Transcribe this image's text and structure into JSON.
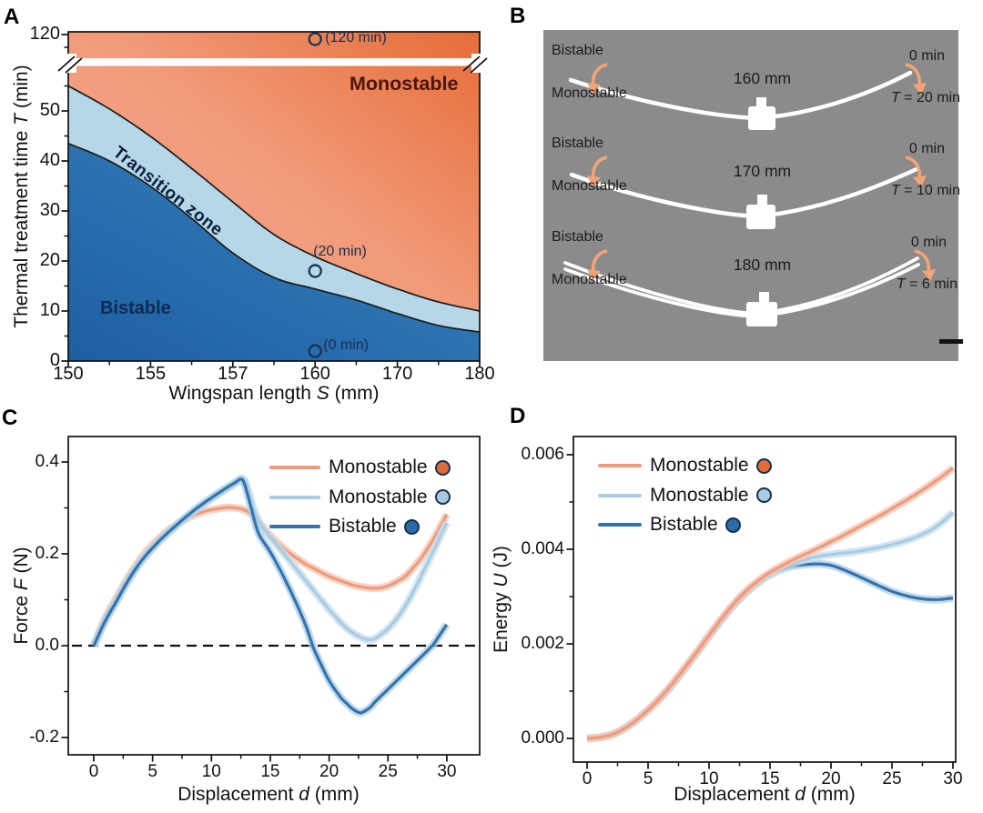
{
  "panels": {
    "a": {
      "letter": "A",
      "ylabel": {
        "pre": "Thermal treatment time ",
        "var": "T",
        "post": " (min)"
      },
      "xlabel": {
        "pre": "Wingspan length ",
        "var": "S",
        "post": " (mm)"
      },
      "yticks": [
        "120",
        "50",
        "40",
        "30",
        "20",
        "10",
        "0"
      ],
      "xticks": [
        "150",
        "155",
        "157",
        "160",
        "170",
        "180"
      ],
      "region_labels": {
        "monostable": "Monostable",
        "transition": "Transition zone",
        "bistable": "Bistable"
      }
    },
    "b": {
      "letter": "B",
      "rows": [
        {
          "state_top": "Bistable",
          "state_bottom": "Monostable",
          "length": "160 mm",
          "time_zero": "0 min",
          "t_var": "T",
          "t_rest": " = 20 min"
        },
        {
          "state_top": "Bistable",
          "state_bottom": "Monostable",
          "length": "170 mm",
          "time_zero": "0 min",
          "t_var": "T",
          "t_rest": " = 10 min"
        },
        {
          "state_top": "Bistable",
          "state_bottom": "Monostable",
          "length": "180 mm",
          "time_zero": "0 min",
          "t_var": "T",
          "t_rest": " = 6 min"
        }
      ]
    },
    "c": {
      "letter": "C",
      "ylabel": {
        "pre": "Force ",
        "var": "F",
        "post": " (N)"
      },
      "xlabel": {
        "pre": "Displacement ",
        "var": "d",
        "post": " (mm)"
      },
      "yticks": [
        "0.4",
        "0.2",
        "0.0",
        "-0.2"
      ],
      "xticks": [
        "0",
        "5",
        "10",
        "15",
        "20",
        "25",
        "30"
      ]
    },
    "d": {
      "letter": "D",
      "ylabel": {
        "pre": "Energy ",
        "var": "U",
        "post": " (J)"
      },
      "xlabel": {
        "pre": "Displacement ",
        "var": "d",
        "post": " (mm)"
      },
      "yticks": [
        "0.006",
        "0.004",
        "0.002",
        "0.000"
      ],
      "xticks": [
        "0",
        "5",
        "10",
        "15",
        "20",
        "25",
        "30"
      ]
    }
  },
  "colors": {
    "panel_b_bg": "#8b8b8b",
    "monostable_dark": "#e66d38",
    "monostable_light": "#f7b096",
    "transition_fill": "#b5d7e8",
    "bistable_dark": "#1c5fa2",
    "bistable_light": "#5398ce",
    "boundary_line": "#1a1a1a",
    "series_orange": "#f09a7c",
    "series_lightblue": "#a9cce0",
    "series_blue": "#3572ad",
    "band_orange": "#f7c4b0",
    "band_lightblue": "#c6def0",
    "band_blue": "#a9cfe6",
    "marker_orange": "#e06a38",
    "marker_lightblue": "#a9cbdf",
    "marker_blue": "#2b6ba6",
    "marker_stroke": "#16304f",
    "arrow_orange": "#f2a478",
    "annot_text": "#1d2c4e",
    "monostable_text": "#4a150b",
    "bistable_text": "#0f2a52",
    "transition_text": "#0d1e3c",
    "wing_white": "#ffffff",
    "scalebar_black": "#111111"
  },
  "chart_data": [
    {
      "panel": "A",
      "type": "area",
      "title": "Phase diagram: bistable / transition / monostable vs wingspan and thermal treatment time",
      "xlabel": "Wingspan length S (mm)",
      "ylabel": "Thermal treatment time T (min)",
      "x_ticks": [
        150,
        155,
        157,
        160,
        170,
        180
      ],
      "x_nonlinear": true,
      "y_ticks": [
        0,
        10,
        20,
        30,
        40,
        50,
        120
      ],
      "y_axis_break": [
        57,
        118
      ],
      "regions": [
        "Bistable",
        "Transition zone",
        "Monostable"
      ],
      "boundaries": {
        "monostable_transition": [
          [
            150,
            55
          ],
          [
            152.5,
            50.4
          ],
          [
            155,
            44.9
          ],
          [
            156,
            38.5
          ],
          [
            157,
            31.8
          ],
          [
            158.5,
            25.3
          ],
          [
            160,
            20.9
          ],
          [
            165,
            17.5
          ],
          [
            170,
            14.4
          ],
          [
            175,
            11.8
          ],
          [
            180,
            10
          ]
        ],
        "transition_bistable": [
          [
            150,
            43.5
          ],
          [
            152.5,
            40
          ],
          [
            155,
            34.9
          ],
          [
            156,
            28.5
          ],
          [
            157,
            21.6
          ],
          [
            158.5,
            16.7
          ],
          [
            160,
            14.4
          ],
          [
            165,
            12.2
          ],
          [
            170,
            9.5
          ],
          [
            175,
            7.1
          ],
          [
            180,
            5.8
          ]
        ]
      },
      "points": [
        {
          "s": 160,
          "t": 120,
          "label": "(120 min)"
        },
        {
          "s": 160,
          "t": 18,
          "label": "(20 min)"
        },
        {
          "s": 160,
          "t": 2,
          "label": "(0 min)"
        }
      ]
    },
    {
      "panel": "C",
      "type": "line",
      "xlabel": "Displacement d (mm)",
      "ylabel": "Force F (N)",
      "xlim": [
        0,
        30
      ],
      "ylim": [
        -0.25,
        0.45
      ],
      "zero_line_dashed": true,
      "legend_position": "top-right",
      "series": [
        {
          "name": "Monostable",
          "x": [
            0,
            0.5,
            1,
            1.5,
            2,
            2.5,
            3,
            4,
            5,
            6,
            7,
            8,
            9,
            10,
            11,
            11.5,
            12,
            12.5,
            13,
            13.5,
            14,
            15,
            16,
            17,
            18,
            19,
            20,
            21,
            22,
            23,
            24,
            25,
            26,
            26.5,
            27,
            28,
            29,
            30
          ],
          "y": [
            0,
            0.032,
            0.06,
            0.085,
            0.108,
            0.13,
            0.152,
            0.19,
            0.22,
            0.244,
            0.263,
            0.278,
            0.289,
            0.296,
            0.3,
            0.301,
            0.3,
            0.298,
            0.293,
            0.285,
            0.27,
            0.24,
            0.215,
            0.195,
            0.178,
            0.164,
            0.151,
            0.141,
            0.132,
            0.127,
            0.125,
            0.13,
            0.143,
            0.152,
            0.165,
            0.197,
            0.238,
            0.286
          ]
        },
        {
          "name": "Monostable",
          "x": [
            0,
            0.5,
            1,
            2,
            3,
            4,
            5,
            6,
            7,
            8,
            9,
            10,
            11,
            12,
            12.6,
            13,
            13.4,
            14,
            15,
            16,
            17,
            18,
            19,
            20,
            21,
            22,
            23,
            23.5,
            24,
            25,
            26,
            27,
            28,
            29,
            30
          ],
          "y": [
            0,
            0.028,
            0.055,
            0.1,
            0.145,
            0.182,
            0.212,
            0.238,
            0.26,
            0.282,
            0.302,
            0.32,
            0.337,
            0.353,
            0.364,
            0.348,
            0.315,
            0.272,
            0.236,
            0.205,
            0.174,
            0.142,
            0.11,
            0.079,
            0.05,
            0.028,
            0.015,
            0.013,
            0.017,
            0.037,
            0.068,
            0.11,
            0.161,
            0.214,
            0.268
          ]
        },
        {
          "name": "Bistable",
          "x": [
            0,
            0.5,
            1,
            2,
            3,
            4,
            5,
            6,
            7,
            8,
            9,
            10,
            11,
            12,
            12.6,
            13,
            13.4,
            14,
            15,
            16,
            17,
            18,
            18.6,
            19,
            20,
            21,
            21.5,
            22,
            22.6,
            23,
            23.5,
            24,
            25,
            26,
            27,
            28,
            28.8,
            29,
            30
          ],
          "y": [
            0,
            0.028,
            0.055,
            0.1,
            0.145,
            0.183,
            0.213,
            0.239,
            0.262,
            0.284,
            0.304,
            0.322,
            0.339,
            0.355,
            0.362,
            0.336,
            0.298,
            0.245,
            0.204,
            0.157,
            0.104,
            0.045,
            0.0,
            -0.024,
            -0.076,
            -0.113,
            -0.126,
            -0.138,
            -0.146,
            -0.143,
            -0.134,
            -0.12,
            -0.095,
            -0.07,
            -0.045,
            -0.02,
            0.001,
            0.008,
            0.046
          ]
        }
      ]
    },
    {
      "panel": "D",
      "type": "line",
      "xlabel": "Displacement d (mm)",
      "ylabel": "Energy U (J)",
      "xlim": [
        0,
        30
      ],
      "ylim": [
        -0.0005,
        0.0064
      ],
      "legend_position": "top-left",
      "series": [
        {
          "name": "Monostable",
          "x": [
            0,
            1,
            2,
            3,
            4,
            5,
            6,
            7,
            8,
            9,
            10,
            11,
            12,
            13,
            14,
            15,
            16,
            17,
            18,
            19,
            20,
            21,
            22,
            23,
            24,
            25,
            26,
            27,
            28,
            29,
            30
          ],
          "y": [
            0,
            2e-05,
            8e-05,
            0.0002,
            0.00038,
            0.0006,
            0.00086,
            0.00116,
            0.00149,
            0.00183,
            0.00218,
            0.00252,
            0.00284,
            0.00311,
            0.00333,
            0.00351,
            0.00366,
            0.00379,
            0.00391,
            0.00403,
            0.00416,
            0.00429,
            0.00443,
            0.00457,
            0.00471,
            0.00486,
            0.00501,
            0.00517,
            0.00534,
            0.00552,
            0.00572
          ]
        },
        {
          "name": "Monostable",
          "x": [
            0,
            1,
            2,
            3,
            4,
            5,
            6,
            7,
            8,
            9,
            10,
            11,
            12,
            13,
            14,
            15,
            16,
            17,
            18,
            19,
            20,
            21,
            22,
            23,
            24,
            25,
            26,
            27,
            28,
            29,
            30
          ],
          "y": [
            0,
            2e-05,
            8e-05,
            0.0002,
            0.00038,
            0.0006,
            0.00085,
            0.00114,
            0.00147,
            0.00181,
            0.00216,
            0.0025,
            0.00281,
            0.00307,
            0.00329,
            0.00347,
            0.00361,
            0.00371,
            0.00379,
            0.00385,
            0.00389,
            0.00392,
            0.00395,
            0.00399,
            0.00404,
            0.0041,
            0.00417,
            0.00426,
            0.00438,
            0.00455,
            0.00478
          ]
        },
        {
          "name": "Bistable",
          "x": [
            0,
            1,
            2,
            3,
            4,
            5,
            6,
            7,
            8,
            9,
            10,
            11,
            12,
            13,
            14,
            15,
            16,
            17,
            18,
            19,
            20,
            21,
            22,
            23,
            24,
            25,
            26,
            27,
            28,
            29,
            30
          ],
          "y": [
            0,
            2e-05,
            8e-05,
            0.0002,
            0.00038,
            0.0006,
            0.00085,
            0.00114,
            0.00147,
            0.00181,
            0.00216,
            0.0025,
            0.00281,
            0.00307,
            0.00329,
            0.00346,
            0.00358,
            0.00365,
            0.00368,
            0.00369,
            0.00366,
            0.00357,
            0.00346,
            0.00334,
            0.00322,
            0.00311,
            0.00303,
            0.00297,
            0.00294,
            0.00294,
            0.00297
          ]
        }
      ]
    }
  ]
}
